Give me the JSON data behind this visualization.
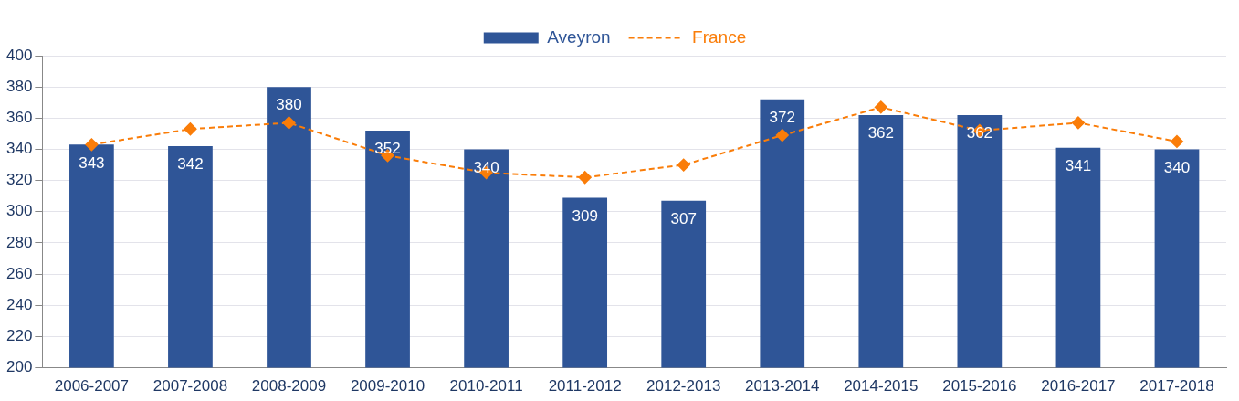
{
  "chart_data": {
    "type": "bar",
    "categories": [
      "2006-2007",
      "2007-2008",
      "2008-2009",
      "2009-2010",
      "2010-2011",
      "2011-2012",
      "2012-2013",
      "2013-2014",
      "2014-2015",
      "2015-2016",
      "2016-2017",
      "2017-2018"
    ],
    "series": [
      {
        "name": "Aveyron",
        "color": "#2f5597",
        "values": [
          343,
          342,
          380,
          352,
          340,
          309,
          307,
          372,
          362,
          362,
          341,
          340
        ],
        "data_labels": true
      },
      {
        "name": "France",
        "type": "line",
        "color": "#fa7d09",
        "values": [
          343,
          353,
          357,
          336,
          325,
          322,
          330,
          349,
          367,
          352,
          357,
          345
        ],
        "marker": "diamond",
        "line_style": "dashed"
      }
    ],
    "ylim": [
      200,
      400
    ],
    "yticks": [
      200,
      220,
      240,
      260,
      280,
      300,
      320,
      340,
      360,
      380,
      400
    ],
    "grid": "y",
    "legend": "top"
  }
}
